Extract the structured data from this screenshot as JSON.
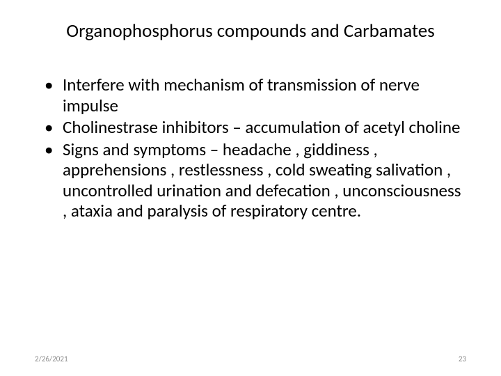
{
  "slide": {
    "title": "Organophosphorus compounds and Carbamates",
    "bullets": [
      " Interfere with mechanism of transmission of nerve impulse",
      "Cholinestrase inhibitors – accumulation of acetyl choline",
      "Signs and symptoms – headache , giddiness , apprehensions , restlessness , cold sweating salivation , uncontrolled urination and defecation , unconsciousness , ataxia and paralysis of respiratory centre."
    ],
    "footer": {
      "date": "2/26/2021",
      "page": "23"
    },
    "styles": {
      "background_color": "#ffffff",
      "title_color": "#000000",
      "title_fontsize": 27,
      "body_color": "#000000",
      "body_fontsize": 25,
      "footer_color": "#8b8b8b",
      "footer_fontsize": 11
    }
  }
}
